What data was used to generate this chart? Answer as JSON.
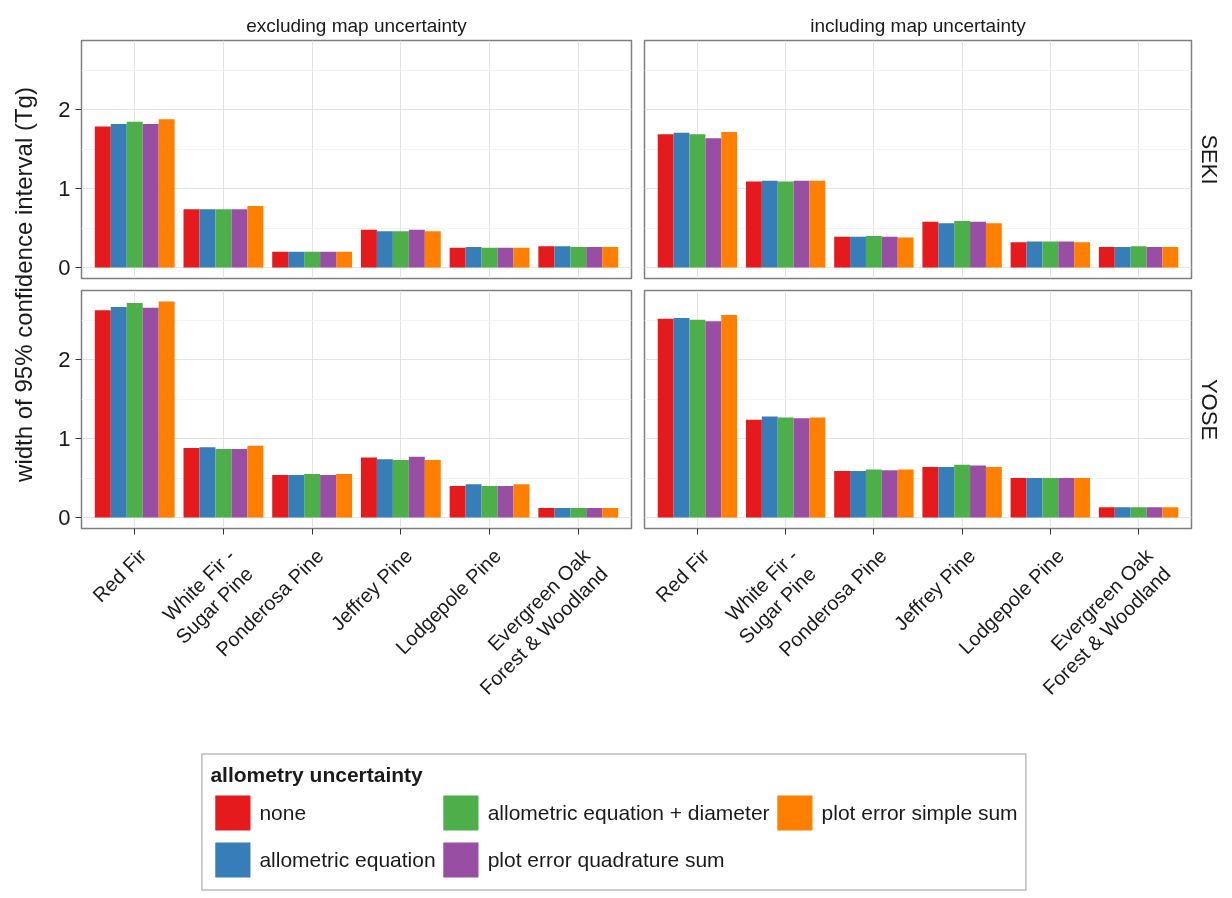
{
  "chart_data": [
    {
      "type": "bar",
      "title": "excluding map uncertainty",
      "ylabel": "width of 95% confidence interval (Tg)",
      "legend": "bottom",
      "legend_title": "allometry uncertainty",
      "categories": [
        "Red Fir",
        "White Fir -\nSugar Pine",
        "Ponderosa Pine",
        "Jeffrey Pine",
        "Lodgepole Pine",
        "Evergreen Oak\nForest & Woodland"
      ],
      "series": [
        {
          "name": "none",
          "color": "#e41a1c",
          "values": [
            1.79,
            0.74,
            0.2,
            0.48,
            0.25,
            0.27
          ]
        },
        {
          "name": "allometric equation",
          "color": "#377eb8",
          "values": [
            1.82,
            0.74,
            0.2,
            0.46,
            0.26,
            0.27
          ]
        },
        {
          "name": "allometric equation + diameter",
          "color": "#4daf4a",
          "values": [
            1.85,
            0.74,
            0.2,
            0.46,
            0.25,
            0.26
          ]
        },
        {
          "name": "plot error quadrature sum",
          "color": "#984ea3",
          "values": [
            1.82,
            0.74,
            0.2,
            0.48,
            0.25,
            0.26
          ]
        },
        {
          "name": "plot error simple sum",
          "color": "#ff7f00",
          "values": [
            1.88,
            0.78,
            0.2,
            0.46,
            0.25,
            0.26
          ]
        }
      ],
      "ylim": [
        -0.14,
        2.88
      ],
      "yticks": [
        0,
        1,
        2
      ],
      "grid": true,
      "tick_labels": "y"
    },
    {
      "type": "bar",
      "title": "including map uncertainty",
      "y2label": "SEKI",
      "categories": [
        "Red Fir",
        "White Fir -\nSugar Pine",
        "Ponderosa Pine",
        "Jeffrey Pine",
        "Lodgepole Pine",
        "Evergreen Oak\nForest & Woodland"
      ],
      "series": [
        {
          "color": "#e41a1c",
          "values": [
            1.69,
            1.09,
            0.39,
            0.58,
            0.32,
            0.26
          ]
        },
        {
          "color": "#377eb8",
          "values": [
            1.71,
            1.1,
            0.39,
            0.56,
            0.33,
            0.26
          ]
        },
        {
          "color": "#4daf4a",
          "values": [
            1.69,
            1.09,
            0.4,
            0.59,
            0.33,
            0.27
          ]
        },
        {
          "color": "#984ea3",
          "values": [
            1.64,
            1.1,
            0.39,
            0.58,
            0.33,
            0.26
          ]
        },
        {
          "color": "#ff7f00",
          "values": [
            1.72,
            1.1,
            0.38,
            0.56,
            0.32,
            0.26
          ]
        }
      ],
      "ylim": [
        -0.14,
        2.88
      ],
      "yticks": [
        0,
        1,
        2
      ],
      "grid": true,
      "tick_labels": false
    },
    {
      "type": "bar",
      "categories": [
        "Red Fir",
        "White Fir -\nSugar Pine",
        "Ponderosa Pine",
        "Jeffrey Pine",
        "Lodgepole Pine",
        "Evergreen Oak\nForest & Woodland"
      ],
      "series": [
        {
          "color": "#e41a1c",
          "values": [
            2.63,
            0.88,
            0.54,
            0.76,
            0.4,
            0.12
          ]
        },
        {
          "color": "#377eb8",
          "values": [
            2.67,
            0.89,
            0.54,
            0.74,
            0.42,
            0.12
          ]
        },
        {
          "color": "#4daf4a",
          "values": [
            2.72,
            0.87,
            0.55,
            0.73,
            0.4,
            0.12
          ]
        },
        {
          "color": "#984ea3",
          "values": [
            2.66,
            0.87,
            0.54,
            0.77,
            0.4,
            0.12
          ]
        },
        {
          "color": "#ff7f00",
          "values": [
            2.74,
            0.91,
            0.55,
            0.73,
            0.42,
            0.12
          ]
        }
      ],
      "ylim": [
        -0.14,
        2.88
      ],
      "yticks": [
        0,
        1,
        2
      ],
      "grid": true
    },
    {
      "type": "bar",
      "y2label": "YOSE",
      "categories": [
        "Red Fir",
        "White Fir -\nSugar Pine",
        "Ponderosa Pine",
        "Jeffrey Pine",
        "Lodgepole Pine",
        "Evergreen Oak\nForest & Woodland"
      ],
      "series": [
        {
          "color": "#e41a1c",
          "values": [
            2.52,
            1.24,
            0.59,
            0.64,
            0.5,
            0.13
          ]
        },
        {
          "color": "#377eb8",
          "values": [
            2.53,
            1.28,
            0.59,
            0.64,
            0.5,
            0.13
          ]
        },
        {
          "color": "#4daf4a",
          "values": [
            2.51,
            1.27,
            0.61,
            0.67,
            0.5,
            0.13
          ]
        },
        {
          "color": "#984ea3",
          "values": [
            2.49,
            1.26,
            0.6,
            0.66,
            0.5,
            0.13
          ]
        },
        {
          "color": "#ff7f00",
          "values": [
            2.57,
            1.27,
            0.61,
            0.64,
            0.5,
            0.13
          ]
        }
      ],
      "ylim": [
        -0.14,
        2.88
      ],
      "yticks": [
        0,
        1,
        2
      ],
      "grid": true,
      "tick_labels": "x"
    }
  ]
}
